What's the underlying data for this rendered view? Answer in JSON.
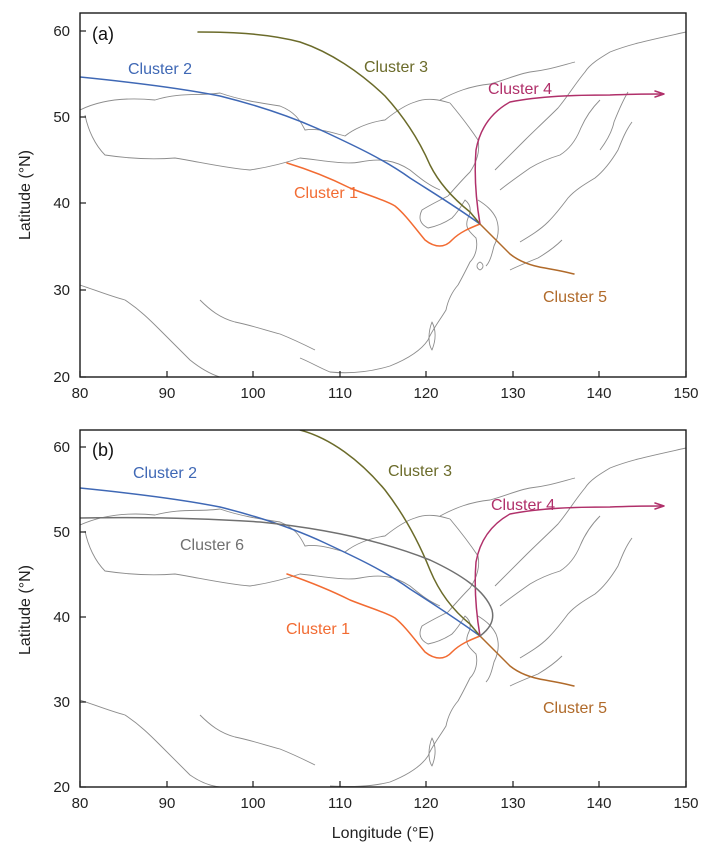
{
  "panels": [
    {
      "label": "(a)",
      "ylabel": "Latitude (°N)",
      "xlabel": "",
      "xticks": [
        "80",
        "90",
        "100",
        "110",
        "120",
        "130",
        "140",
        "150"
      ],
      "yticks": [
        "20",
        "30",
        "40",
        "50",
        "60"
      ],
      "clusters": [
        {
          "name": "Cluster 1",
          "color": "#f26b32"
        },
        {
          "name": "Cluster 2",
          "color": "#3f68b5"
        },
        {
          "name": "Cluster 3",
          "color": "#6b6b2a"
        },
        {
          "name": "Cluster 4",
          "color": "#b0306a"
        },
        {
          "name": "Cluster 5",
          "color": "#b06a2a"
        }
      ]
    },
    {
      "label": "(b)",
      "ylabel": "Latitude (°N)",
      "xlabel": "Longitude (°E)",
      "xticks": [
        "80",
        "90",
        "100",
        "110",
        "120",
        "130",
        "140",
        "150"
      ],
      "yticks": [
        "20",
        "30",
        "40",
        "50",
        "60"
      ],
      "clusters": [
        {
          "name": "Cluster 1",
          "color": "#f26b32"
        },
        {
          "name": "Cluster 2",
          "color": "#3f68b5"
        },
        {
          "name": "Cluster 3",
          "color": "#6b6b2a"
        },
        {
          "name": "Cluster 4",
          "color": "#b0306a"
        },
        {
          "name": "Cluster 5",
          "color": "#b06a2a"
        },
        {
          "name": "Cluster 6",
          "color": "#707070"
        }
      ]
    }
  ],
  "map": {
    "lon_range": [
      80,
      150
    ],
    "lat_range": [
      20,
      62
    ],
    "coastline_color": "#8c8c8c"
  }
}
